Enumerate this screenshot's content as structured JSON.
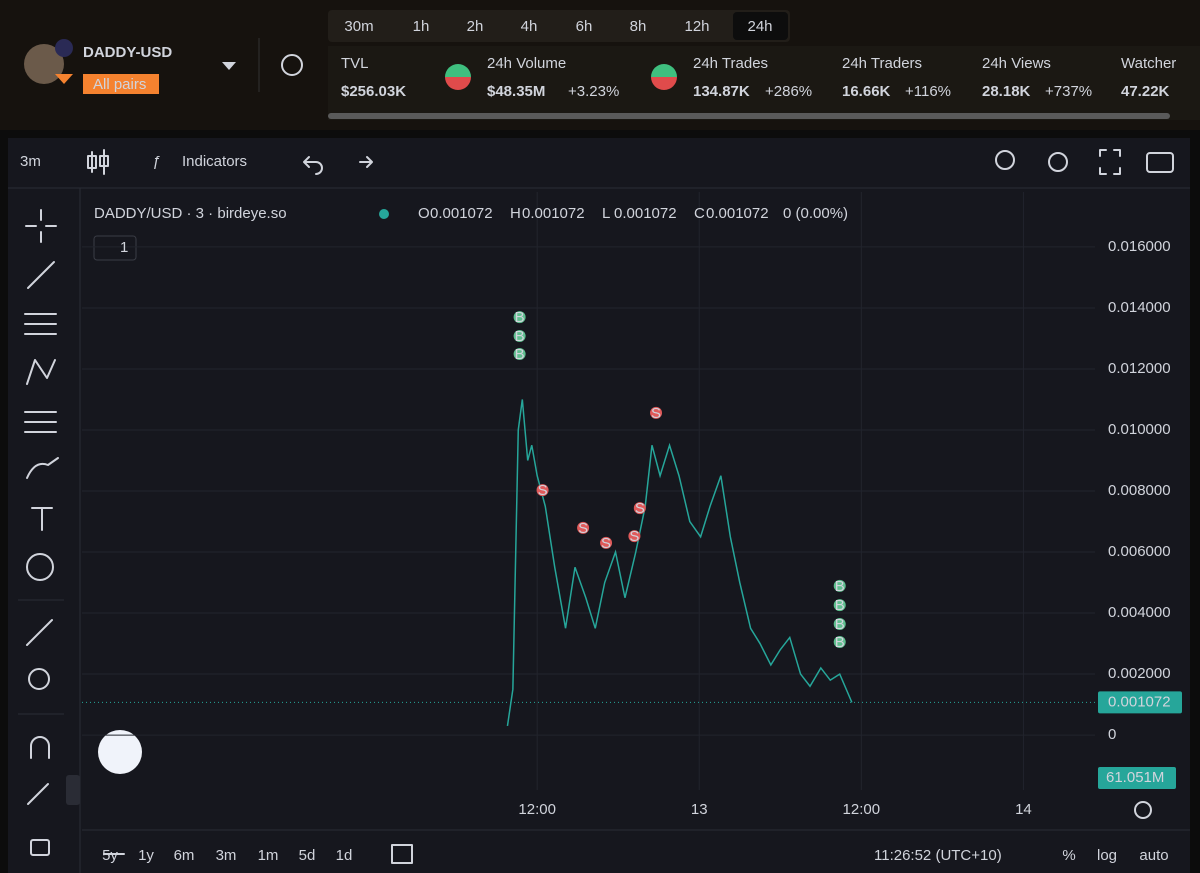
{
  "header": {
    "token": "DADDY-USD",
    "pairs_badge": "All pairs",
    "timeframes": [
      "30m",
      "1h",
      "2h",
      "4h",
      "6h",
      "8h",
      "12h",
      "24h"
    ],
    "active_timeframe": 7,
    "stats": [
      {
        "label": "TVL",
        "value": "$256.03K"
      },
      {
        "label": "24h Volume",
        "value": "$48.35M",
        "change": "+3.23%"
      },
      {
        "label": "24h Trades",
        "value": "134.87K",
        "change": "+286%"
      },
      {
        "label": "24h Traders",
        "value": "16.66K",
        "change": "+116%"
      },
      {
        "label": "24h Views",
        "value": "28.18K",
        "change": "+737%"
      },
      {
        "label": "Watcher",
        "value": "47.22K"
      }
    ]
  },
  "toolbar": {
    "interval": "3m",
    "indicators": "Indicators"
  },
  "legend": {
    "symbol": "DADDY/USD · 3 · birdeye.so",
    "ohlc": [
      {
        "key": "O",
        "value": "0.001072"
      },
      {
        "key": "H",
        "value": "0.001072"
      },
      {
        "key": "L",
        "value": "0.001072"
      },
      {
        "key": "C",
        "value": "0.001072"
      }
    ],
    "change": "0 (0.00%)",
    "pane_count": "1"
  },
  "chart_data": {
    "type": "line",
    "color": "#26a69a",
    "grid": true,
    "x": [
      9.8,
      10.2,
      10.6,
      10.9,
      11.3,
      11.6,
      12.0,
      12.6,
      13.3,
      14.1,
      14.8,
      15.6,
      16.3,
      17.0,
      17.8,
      18.5,
      19.3,
      20.0,
      20.5,
      21.1,
      21.8,
      22.5,
      23.3,
      24.1,
      24.8,
      25.6,
      26.3,
      27.0,
      27.8,
      28.5,
      29.3,
      30.0,
      30.7,
      31.5,
      32.2,
      33.0,
      33.7,
      34.4,
      35.3
    ],
    "values": [
      0.0003,
      0.0015,
      0.01,
      0.011,
      0.009,
      0.0095,
      0.0085,
      0.0075,
      0.0055,
      0.0035,
      0.0055,
      0.0045,
      0.0035,
      0.005,
      0.006,
      0.0045,
      0.006,
      0.0075,
      0.0095,
      0.0085,
      0.0095,
      0.0085,
      0.007,
      0.0065,
      0.0075,
      0.0085,
      0.0065,
      0.005,
      0.0035,
      0.003,
      0.0023,
      0.0028,
      0.0032,
      0.002,
      0.0016,
      0.0022,
      0.0018,
      0.002,
      0.001072
    ],
    "xlim": [
      -21.7,
      53.3
    ],
    "xticks": [
      {
        "value": 12,
        "label": "12:00"
      },
      {
        "value": 24,
        "label": "13"
      },
      {
        "value": 36,
        "label": "12:00"
      },
      {
        "value": 48,
        "label": "14"
      }
    ],
    "ylim": [
      -0.0018,
      0.0178
    ],
    "yticks": [
      0,
      {
        "value": 0.002,
        "label": "0.002000"
      },
      {
        "value": 0.004,
        "label": "0.004000"
      },
      {
        "value": 0.006,
        "label": "0.006000"
      },
      {
        "value": 0.008,
        "label": "0.008000"
      },
      {
        "value": 0.01,
        "label": "0.010000"
      },
      {
        "value": 0.012,
        "label": "0.012000"
      },
      {
        "value": 0.014,
        "label": "0.014000"
      },
      {
        "value": 0.016,
        "label": "0.016000"
      }
    ],
    "last_price": 0.001072,
    "volume_label": "61.051M",
    "markers": [
      {
        "label": "B",
        "x": 10.7,
        "y": 0.0137
      },
      {
        "label": "B",
        "x": 10.7,
        "y": 0.01308
      },
      {
        "label": "B",
        "x": 10.7,
        "y": 0.01249
      },
      {
        "label": "S",
        "x": 12.4,
        "y": 0.00803
      },
      {
        "label": "S",
        "x": 15.4,
        "y": 0.00679
      },
      {
        "label": "S",
        "x": 17.1,
        "y": 0.0063
      },
      {
        "label": "S",
        "x": 19.2,
        "y": 0.00652
      },
      {
        "label": "S",
        "x": 19.6,
        "y": 0.00744
      },
      {
        "label": "S",
        "x": 20.8,
        "y": 0.01056
      },
      {
        "label": "B",
        "x": 34.4,
        "y": 0.00489
      },
      {
        "label": "B",
        "x": 34.4,
        "y": 0.00426
      },
      {
        "label": "B",
        "x": 34.4,
        "y": 0.00364
      },
      {
        "label": "B",
        "x": 34.4,
        "y": 0.00305
      }
    ]
  },
  "footer": {
    "ranges": [
      "5y",
      "1y",
      "6m",
      "3m",
      "1m",
      "5d",
      "1d"
    ],
    "clock": "11:26:52 (UTC+10)",
    "scale_buttons": [
      "%",
      "log",
      "auto"
    ]
  }
}
